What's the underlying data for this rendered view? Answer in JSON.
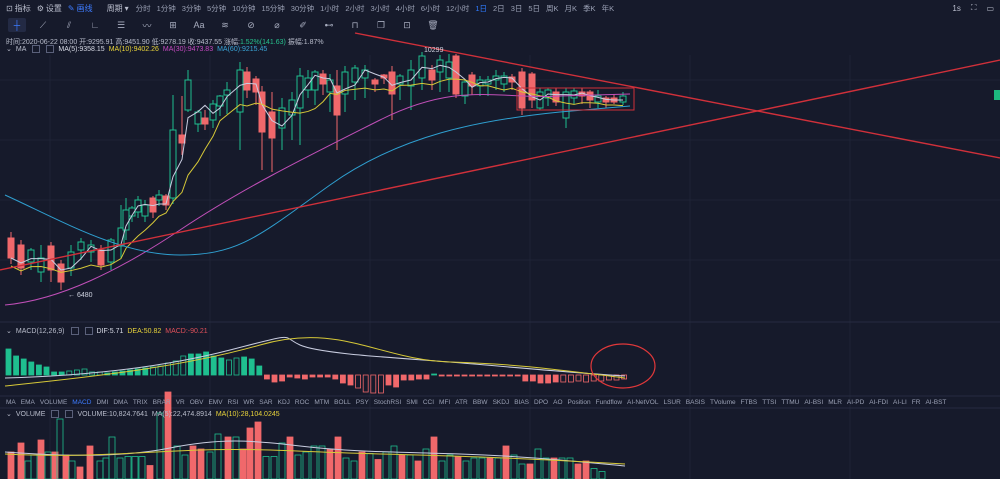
{
  "topbar": {
    "indicators_label": "指标",
    "settings_label": "设置",
    "draw_label": "画线",
    "period_label": "周期",
    "intervals": [
      "分时",
      "1分钟",
      "3分钟",
      "5分钟",
      "10分钟",
      "15分钟",
      "30分钟",
      "1小时",
      "2小时",
      "3小时",
      "4小时",
      "6小时",
      "12小时",
      "1日",
      "2日",
      "3日",
      "5日",
      "周K",
      "月K",
      "季K",
      "年K"
    ],
    "active_interval": "1日",
    "right_label": "1s"
  },
  "drawing_tools": [
    "crosshair",
    "trend-line",
    "parallel-lines",
    "angle",
    "horizontal-lines",
    "wave",
    "grid",
    "text",
    "fib",
    "magnet",
    "eraser",
    "brush",
    "measure",
    "lock",
    "copy",
    "screenshot",
    "trash"
  ],
  "info": {
    "time": "时间:2020-06-22 08:00",
    "open": "开:9295.91",
    "high": "高:9451.90",
    "low": "低:9278.19",
    "close": "收:9437.55",
    "change_label": "涨幅:",
    "change": "1.52%(141.63)",
    "amplitude": "振幅:1.87%"
  },
  "ma_legend": {
    "name": "MA",
    "ma5": "MA(5):9358.15",
    "ma10": "MA(10):9402.26",
    "ma30": "MA(30):9473.83",
    "ma60": "MA(60):9215.45"
  },
  "annotations": {
    "high_label": "10299",
    "low_label": "6480"
  },
  "macd_legend": {
    "name": "MACD(12,26,9)",
    "dif": "DIF:5.71",
    "dea": "DEA:50.82",
    "macd": "MACD:-90.21"
  },
  "indicator_tabs": [
    "MA",
    "EMA",
    "VOLUME",
    "MACD",
    "DMI",
    "DMA",
    "TRIX",
    "BRAR",
    "VR",
    "OBV",
    "EMV",
    "RSI",
    "WR",
    "SAR",
    "KDJ",
    "ROC",
    "MTM",
    "BOLL",
    "PSY",
    "StochRSI",
    "SMI",
    "CCI",
    "MFI",
    "ATR",
    "BBW",
    "SKDJ",
    "BIAS",
    "DPO",
    "AO",
    "Position",
    "Fundflow",
    "AI-NetVOL",
    "LSUR",
    "BASIS",
    "TVolume",
    "FTBS",
    "TTSI",
    "TTMU",
    "AI-BSI",
    "MLR",
    "AI-PD",
    "AI-FDI",
    "AI-LI",
    "FR",
    "AI-BST"
  ],
  "active_indicator_tab": "MACD",
  "volume_legend": {
    "name": "VOLUME",
    "volume": "VOLUME:10,824.7641",
    "ma5": "MA(5):22,474.8914",
    "ma10": "MA(10):28,104.0245"
  },
  "colors": {
    "background": "#161a2b",
    "up": "#1fbf8f",
    "down": "#f0686b",
    "trendline": "#d0303a",
    "ma5": "#c9cde0",
    "ma10": "#d6c838",
    "ma30": "#c04fb8",
    "ma60": "#2f9fd0",
    "accent": "#3d7bff"
  },
  "chart_data": {
    "type": "candlestick",
    "candles_y": [
      [
        11,
        232,
        238,
        258,
        264,
        0
      ],
      [
        21,
        240,
        245,
        268,
        275,
        0
      ],
      [
        31,
        248,
        250,
        262,
        270,
        1
      ],
      [
        41,
        245,
        258,
        272,
        282,
        1
      ],
      [
        51,
        242,
        246,
        270,
        282,
        0
      ],
      [
        61,
        260,
        264,
        282,
        290,
        0
      ],
      [
        71,
        245,
        252,
        268,
        276,
        1
      ],
      [
        81,
        238,
        242,
        250,
        260,
        1
      ],
      [
        91,
        240,
        245,
        252,
        262,
        1
      ],
      [
        101,
        245,
        250,
        265,
        270,
        0
      ],
      [
        111,
        238,
        240,
        262,
        270,
        1
      ],
      [
        121,
        205,
        228,
        246,
        258,
        1
      ],
      [
        126,
        198,
        210,
        230,
        240,
        1
      ],
      [
        132,
        206,
        208,
        216,
        222,
        1
      ],
      [
        138,
        196,
        200,
        212,
        218,
        1
      ],
      [
        145,
        200,
        205,
        216,
        222,
        1
      ],
      [
        153,
        196,
        198,
        212,
        218,
        0
      ],
      [
        159,
        190,
        195,
        200,
        206,
        1
      ],
      [
        166,
        194,
        196,
        205,
        210,
        0
      ],
      [
        173,
        95,
        130,
        198,
        204,
        1
      ],
      [
        182,
        96,
        135,
        143,
        155,
        0
      ],
      [
        188,
        70,
        80,
        110,
        112,
        1
      ],
      [
        198,
        110,
        112,
        124,
        132,
        1
      ],
      [
        205,
        110,
        118,
        124,
        130,
        0
      ],
      [
        213,
        100,
        104,
        120,
        128,
        1
      ],
      [
        220,
        95,
        96,
        106,
        116,
        1
      ],
      [
        227,
        82,
        90,
        95,
        114,
        1
      ],
      [
        240,
        62,
        70,
        112,
        150,
        1
      ],
      [
        247,
        67,
        72,
        90,
        98,
        0
      ],
      [
        256,
        76,
        79,
        92,
        105,
        0
      ],
      [
        262,
        86,
        92,
        132,
        170,
        0
      ],
      [
        272,
        92,
        112,
        138,
        172,
        0
      ],
      [
        282,
        98,
        108,
        128,
        150,
        1
      ],
      [
        292,
        92,
        100,
        115,
        140,
        1
      ],
      [
        300,
        68,
        76,
        108,
        145,
        1
      ],
      [
        308,
        70,
        78,
        90,
        98,
        1
      ],
      [
        315,
        70,
        72,
        90,
        105,
        1
      ],
      [
        323,
        70,
        74,
        84,
        95,
        0
      ],
      [
        330,
        74,
        80,
        92,
        112,
        1
      ],
      [
        337,
        70,
        86,
        115,
        150,
        0
      ],
      [
        345,
        66,
        72,
        94,
        112,
        1
      ],
      [
        355,
        65,
        68,
        82,
        100,
        1
      ],
      [
        365,
        65,
        70,
        78,
        98,
        1
      ],
      [
        375,
        78,
        80,
        84,
        92,
        0
      ],
      [
        384,
        74,
        75,
        78,
        84,
        0
      ],
      [
        392,
        66,
        72,
        94,
        120,
        0
      ],
      [
        400,
        74,
        76,
        84,
        100,
        1
      ],
      [
        411,
        60,
        70,
        86,
        110,
        1
      ],
      [
        422,
        52,
        56,
        78,
        90,
        1
      ],
      [
        432,
        65,
        70,
        80,
        90,
        0
      ],
      [
        440,
        55,
        60,
        72,
        92,
        1
      ],
      [
        449,
        54,
        62,
        78,
        92,
        1
      ],
      [
        456,
        54,
        56,
        94,
        98,
        0
      ],
      [
        465,
        80,
        82,
        96,
        104,
        1
      ],
      [
        472,
        72,
        75,
        86,
        95,
        0
      ],
      [
        480,
        76,
        80,
        86,
        96,
        1
      ],
      [
        488,
        76,
        80,
        84,
        96,
        1
      ],
      [
        496,
        70,
        76,
        80,
        90,
        1
      ],
      [
        504,
        72,
        76,
        84,
        92,
        1
      ],
      [
        512,
        74,
        77,
        82,
        90,
        0
      ],
      [
        522,
        68,
        72,
        108,
        115,
        0
      ],
      [
        532,
        72,
        74,
        100,
        108,
        0
      ],
      [
        540,
        88,
        92,
        108,
        110,
        1
      ],
      [
        548,
        88,
        90,
        98,
        106,
        1
      ],
      [
        556,
        88,
        92,
        102,
        106,
        0
      ],
      [
        566,
        88,
        92,
        118,
        128,
        1
      ],
      [
        574,
        88,
        91,
        98,
        104,
        1
      ],
      [
        582,
        88,
        92,
        96,
        104,
        0
      ],
      [
        590,
        90,
        92,
        100,
        108,
        0
      ],
      [
        598,
        90,
        96,
        102,
        108,
        1
      ],
      [
        606,
        96,
        98,
        102,
        108,
        0
      ],
      [
        614,
        94,
        98,
        102,
        104,
        0
      ],
      [
        623,
        92,
        96,
        102,
        105,
        1
      ]
    ]
  }
}
